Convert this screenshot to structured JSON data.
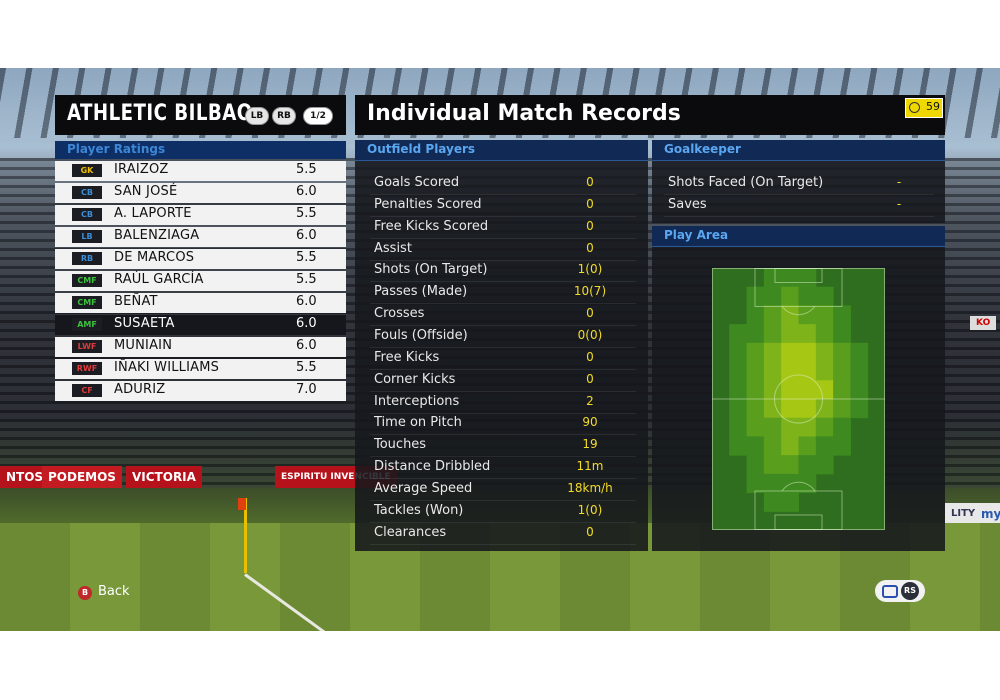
{
  "team": {
    "name": "ATHLETIC BILBAO",
    "badge_lb": "LB",
    "badge_rb": "RB",
    "page": "1/2"
  },
  "ratings": {
    "title": "Player Ratings",
    "players": [
      {
        "pos": "GK",
        "pos_color": "#f0c000",
        "name": "IRAIZOZ",
        "rating": "5.5"
      },
      {
        "pos": "CB",
        "pos_color": "#3a8ed8",
        "name": "SAN JOSÉ",
        "rating": "6.0"
      },
      {
        "pos": "CB",
        "pos_color": "#3a8ed8",
        "name": "A. LAPORTE",
        "rating": "5.5"
      },
      {
        "pos": "LB",
        "pos_color": "#3a8ed8",
        "name": "BALENZIAGA",
        "rating": "6.0"
      },
      {
        "pos": "RB",
        "pos_color": "#3a8ed8",
        "name": "DE MARCOS",
        "rating": "5.5"
      },
      {
        "pos": "CMF",
        "pos_color": "#3cc23c",
        "name": "RAÚL GARCÍA",
        "rating": "5.5"
      },
      {
        "pos": "CMF",
        "pos_color": "#3cc23c",
        "name": "BEÑAT",
        "rating": "6.0"
      },
      {
        "pos": "AMF",
        "pos_color": "#3cc23c",
        "name": "SUSAETA",
        "rating": "6.0"
      },
      {
        "pos": "LWF",
        "pos_color": "#e03a3a",
        "name": "MUNIAIN",
        "rating": "6.0"
      },
      {
        "pos": "RWF",
        "pos_color": "#e03a3a",
        "name": "IÑAKI WILLIAMS",
        "rating": "5.5"
      },
      {
        "pos": "CF",
        "pos_color": "#e03a3a",
        "name": "ADURIZ",
        "rating": "7.0"
      }
    ],
    "selected_index": 7
  },
  "main": {
    "title": "Individual Match Records",
    "timer": "59"
  },
  "outfield": {
    "title": "Outfield Players",
    "stats": [
      {
        "label": "Goals Scored",
        "value": "0"
      },
      {
        "label": "Penalties Scored",
        "value": "0"
      },
      {
        "label": "Free Kicks Scored",
        "value": "0"
      },
      {
        "label": "Assist",
        "value": "0"
      },
      {
        "label": "Shots (On Target)",
        "value": "1(0)"
      },
      {
        "label": "Passes (Made)",
        "value": "10(7)"
      },
      {
        "label": "Crosses",
        "value": "0"
      },
      {
        "label": "Fouls (Offside)",
        "value": "0(0)"
      },
      {
        "label": "Free Kicks",
        "value": "0"
      },
      {
        "label": "Corner Kicks",
        "value": "0"
      },
      {
        "label": "Interceptions",
        "value": "2"
      },
      {
        "label": "Time on Pitch",
        "value": "90"
      },
      {
        "label": "Touches",
        "value": "19"
      },
      {
        "label": "Distance Dribbled",
        "value": "11m"
      },
      {
        "label": "Average Speed",
        "value": "18km/h"
      },
      {
        "label": "Tackles (Won)",
        "value": "1(0)"
      },
      {
        "label": "Clearances",
        "value": "0"
      }
    ]
  },
  "goalkeeper": {
    "title": "Goalkeeper",
    "stats": [
      {
        "label": "Shots Faced (On Target)",
        "value": "-"
      },
      {
        "label": "Saves",
        "value": "-"
      }
    ]
  },
  "play_area": {
    "title": "Play Area"
  },
  "controls": {
    "back_button_key": "B",
    "back_label": "Back",
    "rs_label": "RS"
  },
  "background": {
    "ads": [
      "NTOS",
      "PODEMOS",
      "VICTORIA",
      "ESPIRITU INVENCIBLE",
      "KO",
      "LITY",
      "my"
    ]
  }
}
